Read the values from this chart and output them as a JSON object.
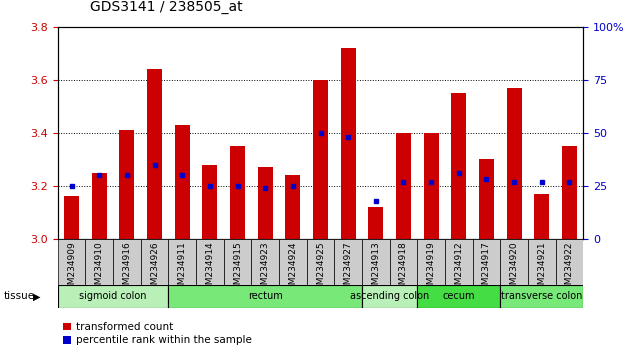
{
  "title": "GDS3141 / 238505_at",
  "samples": [
    "GSM234909",
    "GSM234910",
    "GSM234916",
    "GSM234926",
    "GSM234911",
    "GSM234914",
    "GSM234915",
    "GSM234923",
    "GSM234924",
    "GSM234925",
    "GSM234927",
    "GSM234913",
    "GSM234918",
    "GSM234919",
    "GSM234912",
    "GSM234917",
    "GSM234920",
    "GSM234921",
    "GSM234922"
  ],
  "transformed_count": [
    3.16,
    3.25,
    3.41,
    3.64,
    3.43,
    3.28,
    3.35,
    3.27,
    3.24,
    3.6,
    3.72,
    3.12,
    3.4,
    3.4,
    3.55,
    3.3,
    3.57,
    3.17,
    3.35
  ],
  "percentile_rank": [
    25,
    30,
    30,
    35,
    30,
    25,
    25,
    24,
    25,
    50,
    48,
    18,
    27,
    27,
    31,
    28,
    27,
    27,
    27
  ],
  "ymin": 3.0,
  "ymax": 3.8,
  "y2min": 0,
  "y2max": 100,
  "yticks": [
    3.0,
    3.2,
    3.4,
    3.6,
    3.8
  ],
  "y2ticks": [
    0,
    25,
    50,
    75,
    100
  ],
  "bar_color": "#cc0000",
  "percentile_color": "#0000cc",
  "background_color": "#ffffff",
  "grid_color": "#000000",
  "tissue_groups": [
    {
      "label": "sigmoid colon",
      "start": 0,
      "end": 4,
      "color": "#b8f0b8"
    },
    {
      "label": "rectum",
      "start": 4,
      "end": 11,
      "color": "#78e878"
    },
    {
      "label": "ascending colon",
      "start": 11,
      "end": 13,
      "color": "#b8f0b8"
    },
    {
      "label": "cecum",
      "start": 13,
      "end": 16,
      "color": "#44dd44"
    },
    {
      "label": "transverse colon",
      "start": 16,
      "end": 19,
      "color": "#78e878"
    }
  ],
  "bar_width": 0.55,
  "tick_label_fontsize": 6.5,
  "title_fontsize": 10,
  "axis_label_color_left": "#cc0000",
  "axis_label_color_right": "#0000cc",
  "sample_box_color": "#cccccc",
  "plot_bg_color": "#ffffff"
}
